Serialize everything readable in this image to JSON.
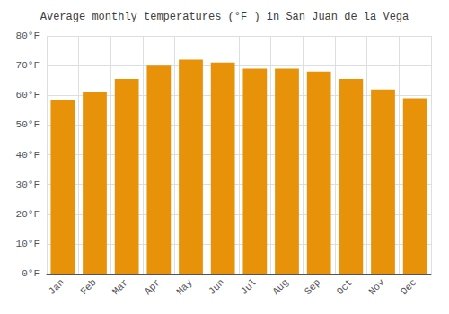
{
  "chart_data": {
    "type": "bar",
    "title": "Average monthly temperatures (°F ) in San Juan de la Vega",
    "categories": [
      "Jan",
      "Feb",
      "Mar",
      "Apr",
      "May",
      "Jun",
      "Jul",
      "Aug",
      "Sep",
      "Oct",
      "Nov",
      "Dec"
    ],
    "values": [
      58.5,
      61.0,
      65.5,
      70.0,
      72.0,
      71.0,
      69.0,
      69.0,
      68.0,
      65.5,
      62.0,
      59.0
    ],
    "color": "#E8920A",
    "ylim": [
      0,
      80
    ],
    "yticks": [
      {
        "value": 0,
        "label": "0°F"
      },
      {
        "value": 10,
        "label": "10°F"
      },
      {
        "value": 20,
        "label": "20°F"
      },
      {
        "value": 30,
        "label": "30°F"
      },
      {
        "value": 40,
        "label": "40°F"
      },
      {
        "value": 50,
        "label": "50°F"
      },
      {
        "value": 60,
        "label": "60°F"
      },
      {
        "value": 70,
        "label": "70°F"
      },
      {
        "value": 80,
        "label": "80°F"
      }
    ],
    "grid": true
  }
}
